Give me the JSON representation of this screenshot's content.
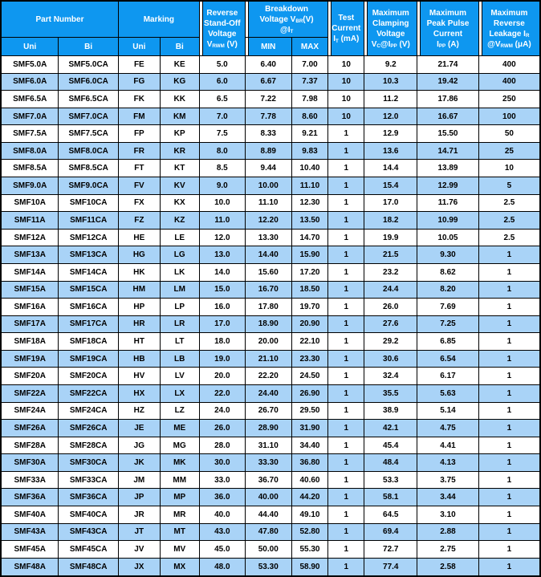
{
  "colors": {
    "header_bg": "#0e97f0",
    "header_text": "#ffffff",
    "row_alt_bg": "#a9d3f7",
    "border": "#000000",
    "body_text": "#000000"
  },
  "table": {
    "header": {
      "part_number": "Part Number",
      "marking": "Marking",
      "uni": "Uni",
      "bi": "Bi",
      "reverse_standoff": "Reverse\nStand-Off\nVoltage\nV_{RWM} (V)",
      "breakdown": "Breakdown\nVoltage V_{BR}(V)\n@I_{T}",
      "min": "MIN",
      "max": "MAX",
      "test_current": "Test\nCurrent\nI_{T} (mA)",
      "clamping": "Maximum\nClamping\nVoltage\nV_{C}@I_{PP} (V)",
      "peak_pulse": "Maximum\nPeak Pulse\nCurrent\nI_{PP} (A)",
      "leakage": "Maximum\nReverse\nLeakage I_{R}\n@V_{RWM} (μA)"
    },
    "rows": [
      [
        "SMF5.0A",
        "SMF5.0CA",
        "FE",
        "KE",
        "5.0",
        "6.40",
        "7.00",
        "10",
        "9.2",
        "21.74",
        "400"
      ],
      [
        "SMF6.0A",
        "SMF6.0CA",
        "FG",
        "KG",
        "6.0",
        "6.67",
        "7.37",
        "10",
        "10.3",
        "19.42",
        "400"
      ],
      [
        "SMF6.5A",
        "SMF6.5CA",
        "FK",
        "KK",
        "6.5",
        "7.22",
        "7.98",
        "10",
        "11.2",
        "17.86",
        "250"
      ],
      [
        "SMF7.0A",
        "SMF7.0CA",
        "FM",
        "KM",
        "7.0",
        "7.78",
        "8.60",
        "10",
        "12.0",
        "16.67",
        "100"
      ],
      [
        "SMF7.5A",
        "SMF7.5CA",
        "FP",
        "KP",
        "7.5",
        "8.33",
        "9.21",
        "1",
        "12.9",
        "15.50",
        "50"
      ],
      [
        "SMF8.0A",
        "SMF8.0CA",
        "FR",
        "KR",
        "8.0",
        "8.89",
        "9.83",
        "1",
        "13.6",
        "14.71",
        "25"
      ],
      [
        "SMF8.5A",
        "SMF8.5CA",
        "FT",
        "KT",
        "8.5",
        "9.44",
        "10.40",
        "1",
        "14.4",
        "13.89",
        "10"
      ],
      [
        "SMF9.0A",
        "SMF9.0CA",
        "FV",
        "KV",
        "9.0",
        "10.00",
        "11.10",
        "1",
        "15.4",
        "12.99",
        "5"
      ],
      [
        "SMF10A",
        "SMF10CA",
        "FX",
        "KX",
        "10.0",
        "11.10",
        "12.30",
        "1",
        "17.0",
        "11.76",
        "2.5"
      ],
      [
        "SMF11A",
        "SMF11CA",
        "FZ",
        "KZ",
        "11.0",
        "12.20",
        "13.50",
        "1",
        "18.2",
        "10.99",
        "2.5"
      ],
      [
        "SMF12A",
        "SMF12CA",
        "HE",
        "LE",
        "12.0",
        "13.30",
        "14.70",
        "1",
        "19.9",
        "10.05",
        "2.5"
      ],
      [
        "SMF13A",
        "SMF13CA",
        "HG",
        "LG",
        "13.0",
        "14.40",
        "15.90",
        "1",
        "21.5",
        "9.30",
        "1"
      ],
      [
        "SMF14A",
        "SMF14CA",
        "HK",
        "LK",
        "14.0",
        "15.60",
        "17.20",
        "1",
        "23.2",
        "8.62",
        "1"
      ],
      [
        "SMF15A",
        "SMF15CA",
        "HM",
        "LM",
        "15.0",
        "16.70",
        "18.50",
        "1",
        "24.4",
        "8.20",
        "1"
      ],
      [
        "SMF16A",
        "SMF16CA",
        "HP",
        "LP",
        "16.0",
        "17.80",
        "19.70",
        "1",
        "26.0",
        "7.69",
        "1"
      ],
      [
        "SMF17A",
        "SMF17CA",
        "HR",
        "LR",
        "17.0",
        "18.90",
        "20.90",
        "1",
        "27.6",
        "7.25",
        "1"
      ],
      [
        "SMF18A",
        "SMF18CA",
        "HT",
        "LT",
        "18.0",
        "20.00",
        "22.10",
        "1",
        "29.2",
        "6.85",
        "1"
      ],
      [
        "SMF19A",
        "SMF19CA",
        "HB",
        "LB",
        "19.0",
        "21.10",
        "23.30",
        "1",
        "30.6",
        "6.54",
        "1"
      ],
      [
        "SMF20A",
        "SMF20CA",
        "HV",
        "LV",
        "20.0",
        "22.20",
        "24.50",
        "1",
        "32.4",
        "6.17",
        "1"
      ],
      [
        "SMF22A",
        "SMF22CA",
        "HX",
        "LX",
        "22.0",
        "24.40",
        "26.90",
        "1",
        "35.5",
        "5.63",
        "1"
      ],
      [
        "SMF24A",
        "SMF24CA",
        "HZ",
        "LZ",
        "24.0",
        "26.70",
        "29.50",
        "1",
        "38.9",
        "5.14",
        "1"
      ],
      [
        "SMF26A",
        "SMF26CA",
        "JE",
        "ME",
        "26.0",
        "28.90",
        "31.90",
        "1",
        "42.1",
        "4.75",
        "1"
      ],
      [
        "SMF28A",
        "SMF28CA",
        "JG",
        "MG",
        "28.0",
        "31.10",
        "34.40",
        "1",
        "45.4",
        "4.41",
        "1"
      ],
      [
        "SMF30A",
        "SMF30CA",
        "JK",
        "MK",
        "30.0",
        "33.30",
        "36.80",
        "1",
        "48.4",
        "4.13",
        "1"
      ],
      [
        "SMF33A",
        "SMF33CA",
        "JM",
        "MM",
        "33.0",
        "36.70",
        "40.60",
        "1",
        "53.3",
        "3.75",
        "1"
      ],
      [
        "SMF36A",
        "SMF36CA",
        "JP",
        "MP",
        "36.0",
        "40.00",
        "44.20",
        "1",
        "58.1",
        "3.44",
        "1"
      ],
      [
        "SMF40A",
        "SMF40CA",
        "JR",
        "MR",
        "40.0",
        "44.40",
        "49.10",
        "1",
        "64.5",
        "3.10",
        "1"
      ],
      [
        "SMF43A",
        "SMF43CA",
        "JT",
        "MT",
        "43.0",
        "47.80",
        "52.80",
        "1",
        "69.4",
        "2.88",
        "1"
      ],
      [
        "SMF45A",
        "SMF45CA",
        "JV",
        "MV",
        "45.0",
        "50.00",
        "55.30",
        "1",
        "72.7",
        "2.75",
        "1"
      ],
      [
        "SMF48A",
        "SMF48CA",
        "JX",
        "MX",
        "48.0",
        "53.30",
        "58.90",
        "1",
        "77.4",
        "2.58",
        "1"
      ]
    ]
  }
}
